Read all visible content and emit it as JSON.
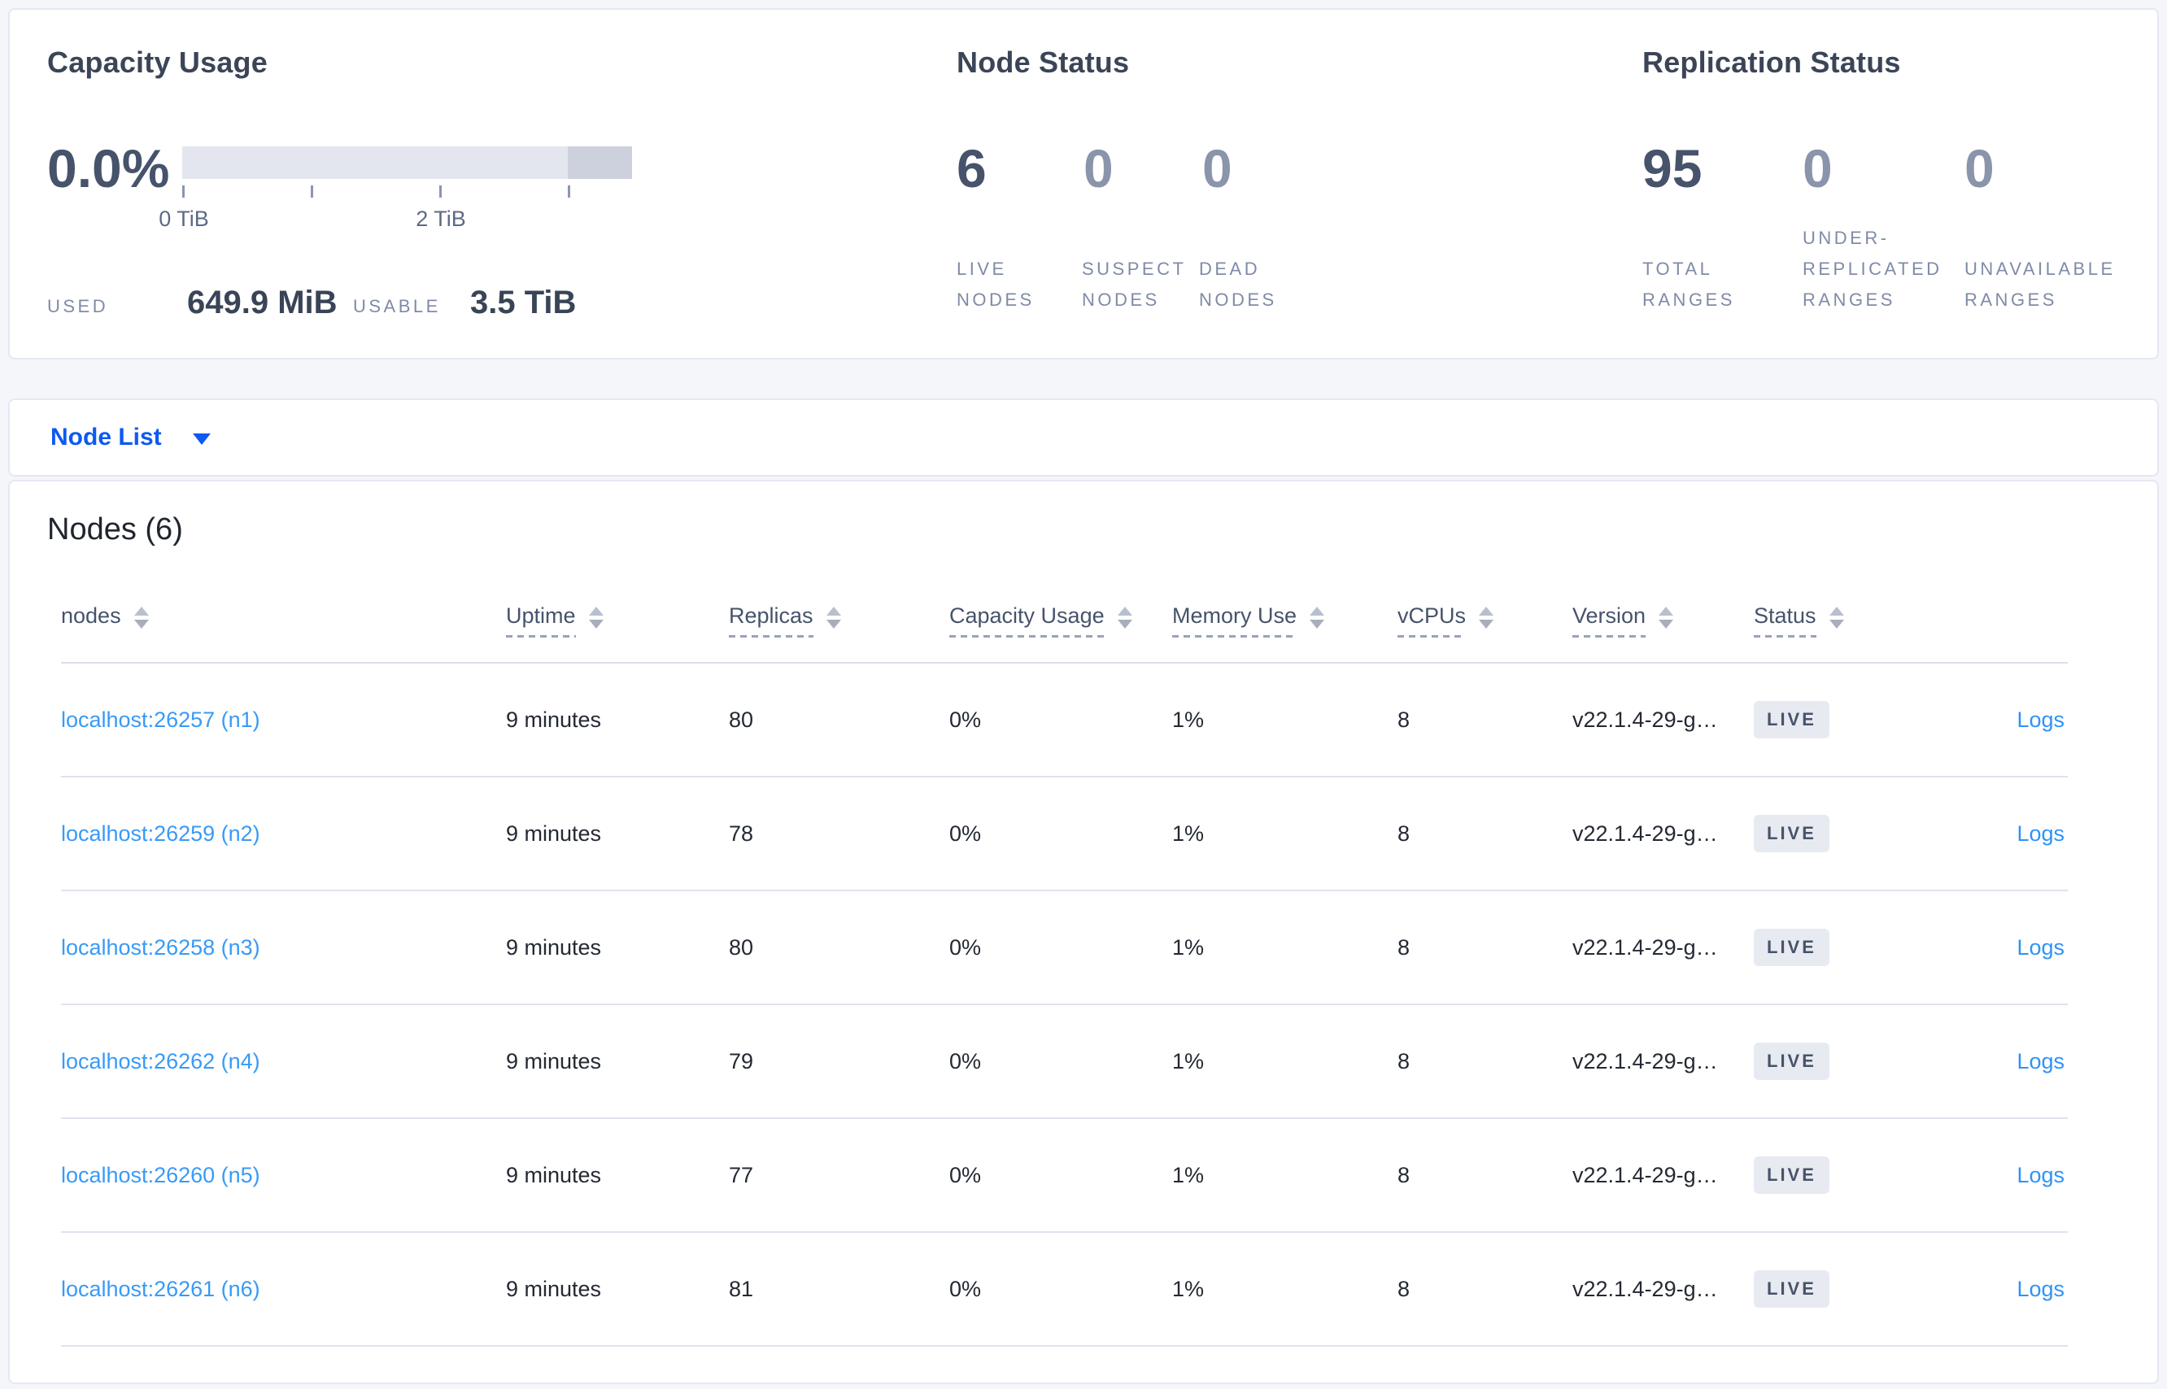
{
  "capacity_panel": {
    "title": "Capacity Usage",
    "percent": "0.0%",
    "axis_tick_labels": [
      "0 TiB",
      "2 TiB"
    ],
    "used_label": "USED",
    "used_value": "649.9 MiB",
    "usable_label": "USABLE",
    "usable_value": "3.5 TiB"
  },
  "node_status_panel": {
    "title": "Node Status",
    "metrics": [
      {
        "value": "6",
        "label": "LIVE\nNODES"
      },
      {
        "value": "0",
        "label": "SUSPECT\nNODES"
      },
      {
        "value": "0",
        "label": "DEAD\nNODES"
      }
    ]
  },
  "replication_panel": {
    "title": "Replication Status",
    "metrics": [
      {
        "value": "95",
        "label": "TOTAL\nRANGES"
      },
      {
        "value": "0",
        "label": "UNDER-\nREPLICATED\nRANGES"
      },
      {
        "value": "0",
        "label": "UNAVAILABLE\nRANGES"
      }
    ]
  },
  "view_selector": {
    "label": "Node List"
  },
  "nodes_table": {
    "title": "Nodes (6)",
    "columns": [
      {
        "key": "node",
        "label": "nodes",
        "sortable": true,
        "dashed": false
      },
      {
        "key": "uptime",
        "label": "Uptime",
        "sortable": true,
        "dashed": true
      },
      {
        "key": "replicas",
        "label": "Replicas",
        "sortable": true,
        "dashed": true
      },
      {
        "key": "capacity",
        "label": "Capacity Usage",
        "sortable": true,
        "dashed": true
      },
      {
        "key": "memory",
        "label": "Memory Use",
        "sortable": true,
        "dashed": true
      },
      {
        "key": "vcpus",
        "label": "vCPUs",
        "sortable": true,
        "dashed": true
      },
      {
        "key": "version",
        "label": "Version",
        "sortable": true,
        "dashed": true
      },
      {
        "key": "status",
        "label": "Status",
        "sortable": true,
        "dashed": true
      },
      {
        "key": "logs",
        "label": "",
        "sortable": false,
        "dashed": false
      }
    ],
    "rows": [
      {
        "node": "localhost:26257 (n1)",
        "uptime": "9 minutes",
        "replicas": "80",
        "capacity": "0%",
        "memory": "1%",
        "vcpus": "8",
        "version": "v22.1.4-29-g…",
        "status": "LIVE",
        "logs": "Logs"
      },
      {
        "node": "localhost:26259 (n2)",
        "uptime": "9 minutes",
        "replicas": "78",
        "capacity": "0%",
        "memory": "1%",
        "vcpus": "8",
        "version": "v22.1.4-29-g…",
        "status": "LIVE",
        "logs": "Logs"
      },
      {
        "node": "localhost:26258 (n3)",
        "uptime": "9 minutes",
        "replicas": "80",
        "capacity": "0%",
        "memory": "1%",
        "vcpus": "8",
        "version": "v22.1.4-29-g…",
        "status": "LIVE",
        "logs": "Logs"
      },
      {
        "node": "localhost:26262 (n4)",
        "uptime": "9 minutes",
        "replicas": "79",
        "capacity": "0%",
        "memory": "1%",
        "vcpus": "8",
        "version": "v22.1.4-29-g…",
        "status": "LIVE",
        "logs": "Logs"
      },
      {
        "node": "localhost:26260 (n5)",
        "uptime": "9 minutes",
        "replicas": "77",
        "capacity": "0%",
        "memory": "1%",
        "vcpus": "8",
        "version": "v22.1.4-29-g…",
        "status": "LIVE",
        "logs": "Logs"
      },
      {
        "node": "localhost:26261 (n6)",
        "uptime": "9 minutes",
        "replicas": "81",
        "capacity": "0%",
        "memory": "1%",
        "vcpus": "8",
        "version": "v22.1.4-29-g…",
        "status": "LIVE",
        "logs": "Logs"
      }
    ]
  }
}
